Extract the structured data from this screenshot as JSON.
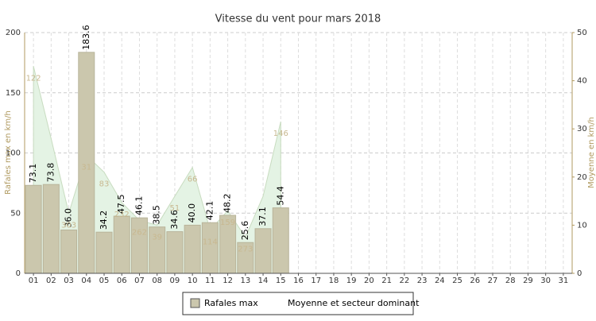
{
  "chart_data": {
    "type": "bar",
    "title": "Vitesse du vent pour mars 2018",
    "ylabel": "Rafales max en km/h",
    "y2label": "Moyenne en km/h",
    "categories": [
      "01",
      "02",
      "03",
      "04",
      "05",
      "06",
      "07",
      "08",
      "09",
      "10",
      "11",
      "12",
      "13",
      "14",
      "15",
      "16",
      "17",
      "18",
      "19",
      "20",
      "21",
      "22",
      "23",
      "24",
      "25",
      "26",
      "27",
      "28",
      "29",
      "30",
      "31"
    ],
    "ylim": [
      0,
      200
    ],
    "yticks": [
      0,
      50,
      100,
      150,
      200
    ],
    "y2lim": [
      0,
      50
    ],
    "y2ticks": [
      0,
      10,
      20,
      30,
      40,
      50
    ],
    "grid": true,
    "legend": "bottom",
    "series": [
      {
        "name": "Rafales max",
        "color": "#cbc7ad",
        "values": [
          73.1,
          73.8,
          36.0,
          183.6,
          34.2,
          47.5,
          46.1,
          38.5,
          34.6,
          40.0,
          42.1,
          48.2,
          25.6,
          37.1,
          54.4,
          null,
          null,
          null,
          null,
          null,
          null,
          null,
          null,
          null,
          null,
          null,
          null,
          null,
          null,
          null,
          null
        ],
        "value_labels": [
          "73.1",
          "73.8",
          "36.0",
          "183.6",
          "34.2",
          "47.5",
          "46.1",
          "38.5",
          "34.6",
          "40.0",
          "42.1",
          "48.2",
          "25.6",
          "37.1",
          "54.4",
          null,
          null,
          null,
          null,
          null,
          null,
          null,
          null,
          null,
          null,
          null,
          null,
          null,
          null,
          null,
          null
        ]
      },
      {
        "name": "Moyenne et secteur dominant",
        "color": "#e4f3e4",
        "axis": "y2",
        "values": [
          43,
          28,
          12.5,
          24.5,
          21,
          14.7,
          11,
          10,
          16,
          22,
          9,
          13,
          7.5,
          16,
          31.5,
          null,
          null,
          null,
          null,
          null,
          null,
          null,
          null,
          null,
          null,
          null,
          null,
          null,
          null,
          null,
          null
        ],
        "directions": [
          "122",
          null,
          "303",
          "31",
          "83",
          "232",
          "262",
          "39",
          "51",
          "66",
          "114",
          "159",
          "273",
          null,
          "146",
          null,
          null,
          null,
          null,
          null,
          null,
          null,
          null,
          null,
          null,
          null,
          null,
          null,
          null,
          null,
          null
        ]
      }
    ]
  }
}
